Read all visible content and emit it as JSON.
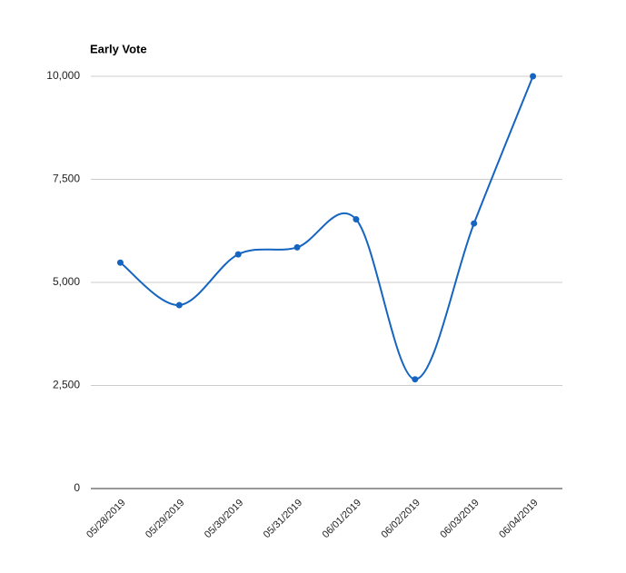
{
  "chart_data": {
    "type": "line",
    "title": "Early Vote",
    "categories": [
      "05/28/2019",
      "05/29/2019",
      "05/30/2019",
      "05/31/2019",
      "06/01/2019",
      "06/02/2019",
      "06/03/2019",
      "06/04/2019"
    ],
    "series": [
      {
        "color": "#1565c0",
        "values": [
          5480,
          4450,
          5680,
          5850,
          6530,
          2650,
          6430,
          10000
        ]
      }
    ],
    "ylim": [
      0,
      10000
    ],
    "yticks": [
      0,
      {
        "value": 2500,
        "label": "2,500"
      },
      {
        "value": 5000,
        "label": "5,000"
      },
      {
        "value": 7500,
        "label": "7,500"
      },
      {
        "value": 10000,
        "label": "10,000"
      }
    ],
    "grid": true,
    "smooth": true
  }
}
